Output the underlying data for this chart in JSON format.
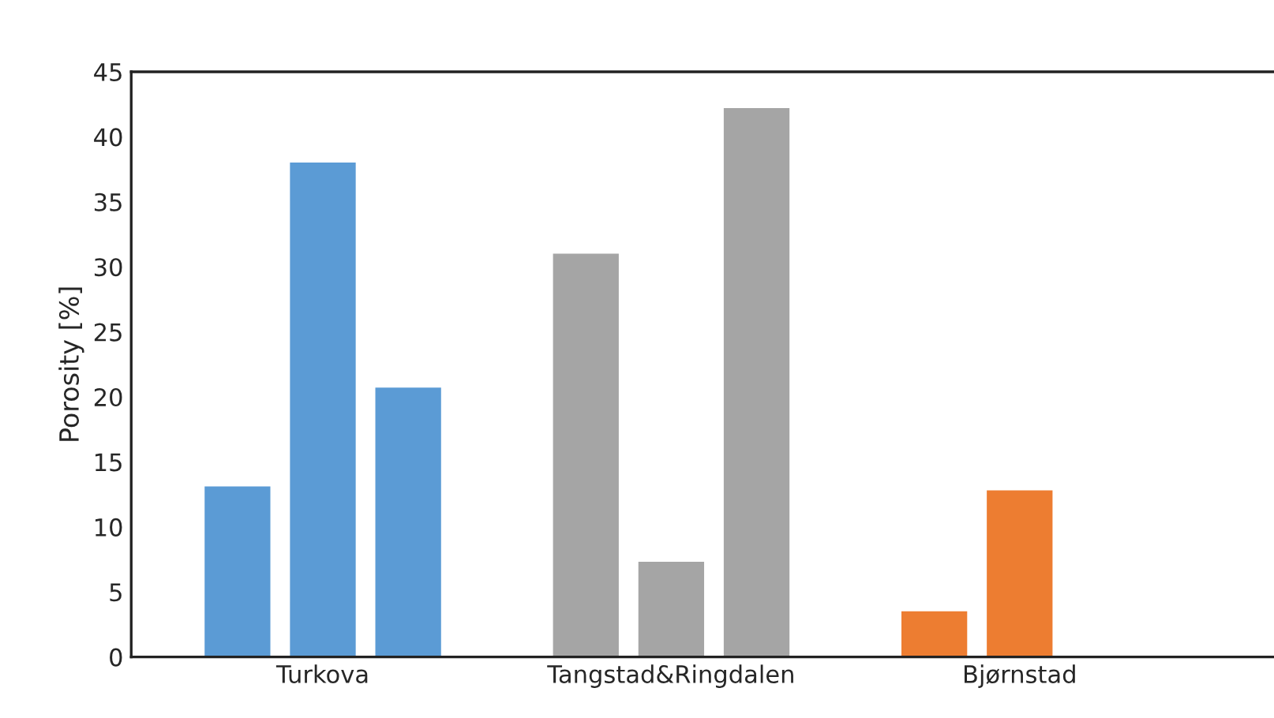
{
  "chart_data": {
    "type": "bar",
    "ylabel": "Porosity [%]",
    "categories": [
      "Turkova",
      "Tangstad&Ringdalen",
      "Bjørnstad"
    ],
    "series": [
      {
        "colors": [
          "#5b9bd5",
          "#a5a5a5",
          "#ed7d31"
        ],
        "values": [
          13.2,
          31.1,
          3.6
        ]
      },
      {
        "colors": [
          "#5b9bd5",
          "#a5a5a5",
          "#ed7d31"
        ],
        "values": [
          38.1,
          7.4,
          12.9
        ]
      },
      {
        "colors": [
          "#5b9bd5",
          "#a5a5a5",
          "#ed7d31"
        ],
        "values": [
          20.8,
          42.3,
          null
        ]
      }
    ],
    "ylim": [
      0,
      45
    ],
    "yticks": [
      0,
      5,
      10,
      15,
      20,
      25,
      30,
      35,
      40,
      45
    ],
    "grid": false,
    "legend": false
  }
}
